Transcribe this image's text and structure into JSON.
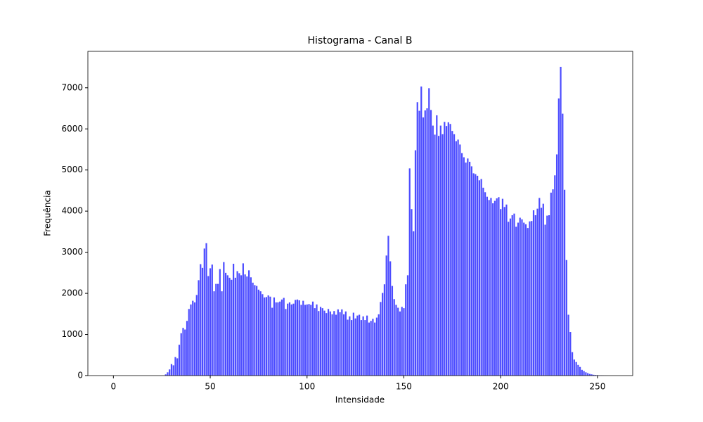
{
  "chart_data": {
    "type": "bar",
    "title": "Histograma - Canal B",
    "x_label": "Intensidade",
    "y_label": "Frequência",
    "x": [
      0,
      1,
      2,
      3,
      4,
      5,
      6,
      7,
      8,
      9,
      10,
      11,
      12,
      13,
      14,
      15,
      16,
      17,
      18,
      19,
      20,
      21,
      22,
      23,
      24,
      25,
      26,
      27,
      28,
      29,
      30,
      31,
      32,
      33,
      34,
      35,
      36,
      37,
      38,
      39,
      40,
      41,
      42,
      43,
      44,
      45,
      46,
      47,
      48,
      49,
      50,
      51,
      52,
      53,
      54,
      55,
      56,
      57,
      58,
      59,
      60,
      61,
      62,
      63,
      64,
      65,
      66,
      67,
      68,
      69,
      70,
      71,
      72,
      73,
      74,
      75,
      76,
      77,
      78,
      79,
      80,
      81,
      82,
      83,
      84,
      85,
      86,
      87,
      88,
      89,
      90,
      91,
      92,
      93,
      94,
      95,
      96,
      97,
      98,
      99,
      100,
      101,
      102,
      103,
      104,
      105,
      106,
      107,
      108,
      109,
      110,
      111,
      112,
      113,
      114,
      115,
      116,
      117,
      118,
      119,
      120,
      121,
      122,
      123,
      124,
      125,
      126,
      127,
      128,
      129,
      130,
      131,
      132,
      133,
      134,
      135,
      136,
      137,
      138,
      139,
      140,
      141,
      142,
      143,
      144,
      145,
      146,
      147,
      148,
      149,
      150,
      151,
      152,
      153,
      154,
      155,
      156,
      157,
      158,
      159,
      160,
      161,
      162,
      163,
      164,
      165,
      166,
      167,
      168,
      169,
      170,
      171,
      172,
      173,
      174,
      175,
      176,
      177,
      178,
      179,
      180,
      181,
      182,
      183,
      184,
      185,
      186,
      187,
      188,
      189,
      190,
      191,
      192,
      193,
      194,
      195,
      196,
      197,
      198,
      199,
      200,
      201,
      202,
      203,
      204,
      205,
      206,
      207,
      208,
      209,
      210,
      211,
      212,
      213,
      214,
      215,
      216,
      217,
      218,
      219,
      220,
      221,
      222,
      223,
      224,
      225,
      226,
      227,
      228,
      229,
      230,
      231,
      232,
      233,
      234,
      235,
      236,
      237,
      238,
      239,
      240,
      241,
      242,
      243,
      244,
      245,
      246,
      247,
      248,
      249,
      250,
      251,
      252,
      253,
      254,
      255
    ],
    "values": [
      0,
      0,
      0,
      0,
      0,
      0,
      0,
      0,
      0,
      0,
      0,
      0,
      0,
      0,
      0,
      0,
      0,
      0,
      0,
      0,
      0,
      0,
      0,
      0,
      0,
      0,
      0,
      30,
      80,
      150,
      280,
      250,
      450,
      420,
      750,
      1030,
      1160,
      1120,
      1330,
      1620,
      1730,
      1820,
      1780,
      1960,
      2320,
      2710,
      2620,
      3090,
      3220,
      2420,
      2610,
      2700,
      2050,
      2230,
      2230,
      2590,
      2050,
      2760,
      2500,
      2440,
      2380,
      2330,
      2720,
      2380,
      2540,
      2490,
      2440,
      2730,
      2460,
      2410,
      2560,
      2390,
      2260,
      2200,
      2180,
      2090,
      2050,
      1980,
      1900,
      1910,
      1950,
      1920,
      1650,
      1900,
      1780,
      1780,
      1800,
      1850,
      1890,
      1620,
      1750,
      1780,
      1730,
      1750,
      1840,
      1850,
      1830,
      1720,
      1820,
      1720,
      1730,
      1740,
      1720,
      1800,
      1640,
      1730,
      1570,
      1670,
      1640,
      1580,
      1520,
      1620,
      1560,
      1490,
      1570,
      1480,
      1610,
      1540,
      1610,
      1490,
      1560,
      1360,
      1440,
      1350,
      1530,
      1390,
      1460,
      1480,
      1350,
      1440,
      1350,
      1460,
      1290,
      1330,
      1380,
      1290,
      1410,
      1490,
      1790,
      2010,
      2220,
      2920,
      3400,
      2780,
      2180,
      1860,
      1720,
      1650,
      1560,
      1670,
      1640,
      2220,
      2440,
      5040,
      4050,
      3510,
      5480,
      6650,
      6440,
      7030,
      6280,
      6450,
      6500,
      6990,
      6460,
      6080,
      5860,
      6330,
      5830,
      6080,
      5870,
      6170,
      6070,
      6160,
      6120,
      5950,
      5870,
      5700,
      5740,
      5620,
      5410,
      5310,
      5180,
      5280,
      5200,
      5090,
      4920,
      4900,
      4860,
      4750,
      4780,
      4570,
      4460,
      4350,
      4270,
      4320,
      4190,
      4250,
      4310,
      4340,
      4050,
      4300,
      4100,
      4160,
      3740,
      3820,
      3900,
      3940,
      3620,
      3720,
      3840,
      3800,
      3720,
      3680,
      3590,
      3750,
      3760,
      4020,
      3900,
      4060,
      4320,
      4080,
      4180,
      3670,
      3890,
      3900,
      4450,
      4530,
      4870,
      5380,
      6740,
      7510,
      6370,
      4520,
      2810,
      1480,
      1060,
      570,
      390,
      330,
      260,
      210,
      140,
      110,
      80,
      60,
      40,
      30,
      20,
      15,
      10,
      8,
      5,
      3,
      2,
      1
    ],
    "color": "#0000ff",
    "alpha": 0.7,
    "bar_width": 0.8,
    "xlim": [
      -13.19,
      268.19
    ],
    "xticks": [
      0,
      50,
      100,
      150,
      200,
      250
    ],
    "ylim": [
      0,
      7886
    ],
    "yticks": [
      0,
      1000,
      2000,
      3000,
      4000,
      5000,
      6000,
      7000
    ],
    "grid": false
  }
}
